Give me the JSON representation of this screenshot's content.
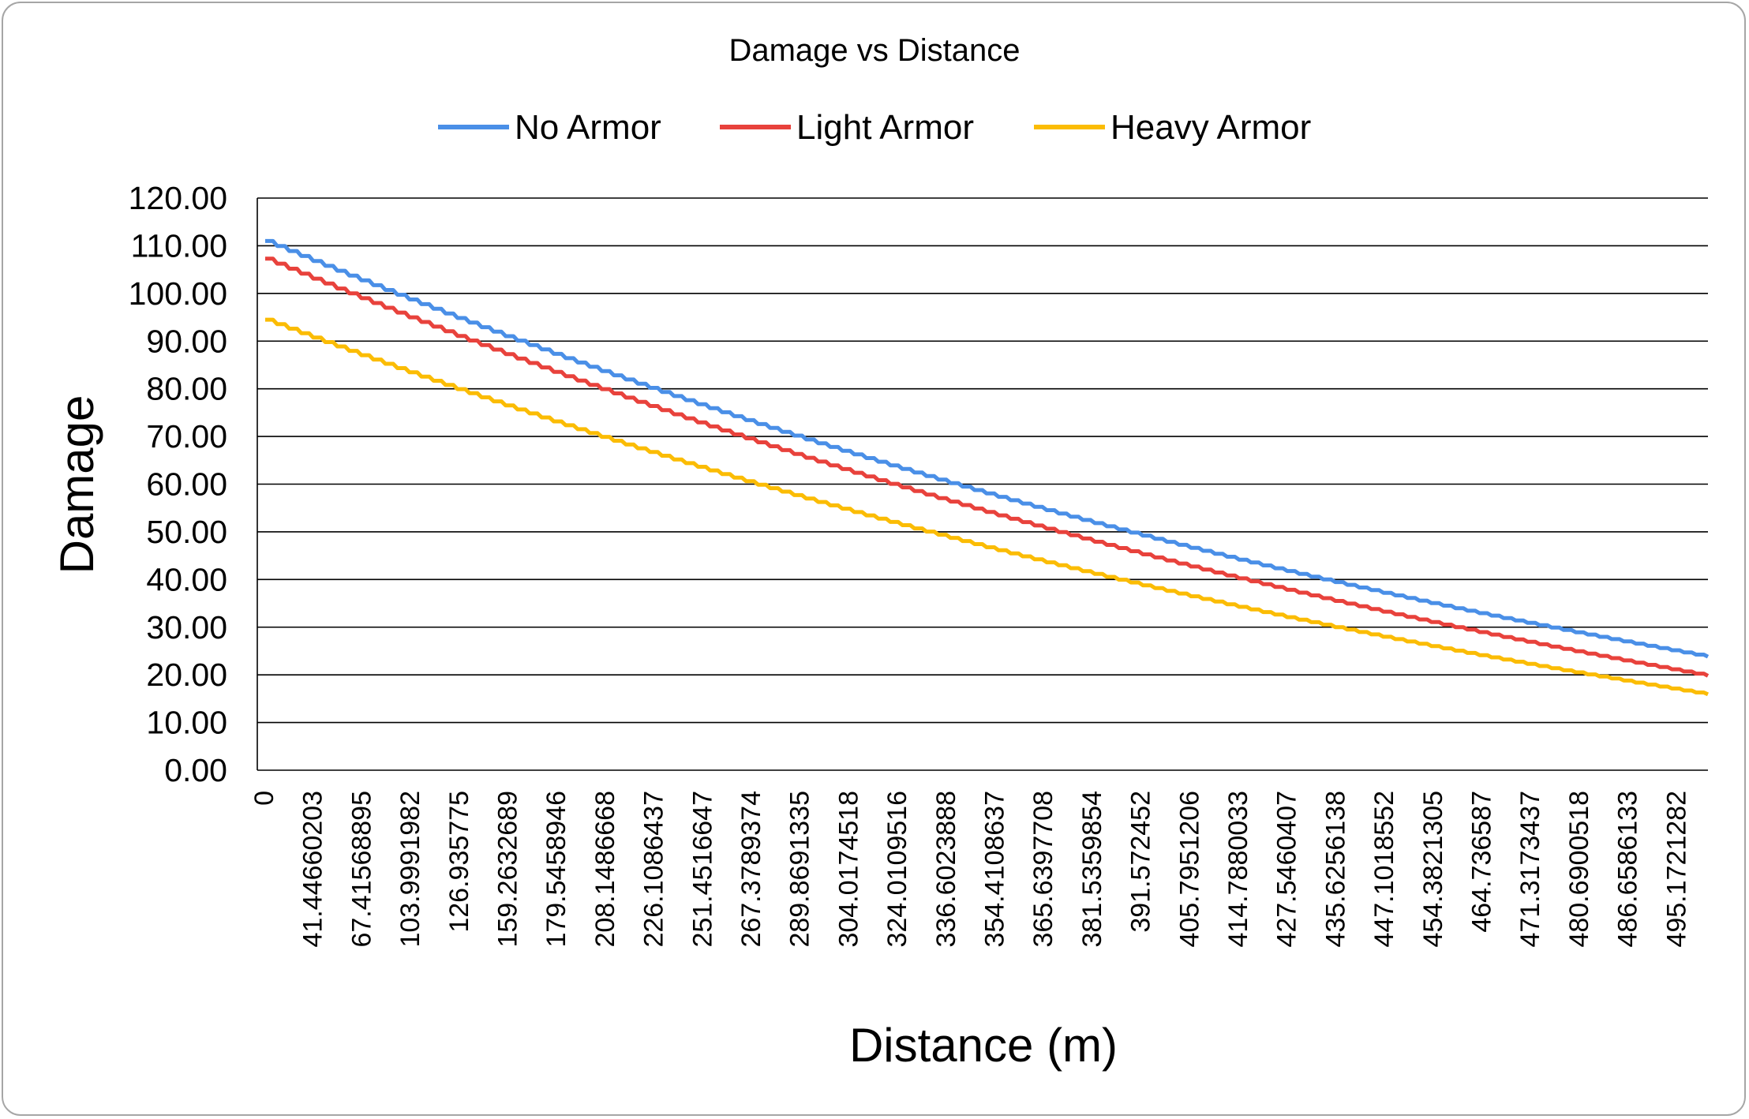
{
  "chart_data": {
    "type": "line",
    "title": "Damage vs Distance",
    "xlabel": "Distance (m)",
    "ylabel": "Damage",
    "ylim": [
      0,
      120
    ],
    "xlim": [
      0,
      500
    ],
    "y_ticks": [
      "0.00",
      "10.00",
      "20.00",
      "30.00",
      "40.00",
      "50.00",
      "60.00",
      "70.00",
      "80.00",
      "90.00",
      "100.00",
      "110.00",
      "120.00"
    ],
    "x_tick_labels": [
      "0",
      "41.44660203",
      "67.41568895",
      "103.9991982",
      "126.935775",
      "159.2632689",
      "179.5458946",
      "208.1486668",
      "226.1086437",
      "251.4516647",
      "267.3789374",
      "289.8691335",
      "304.0174518",
      "324.0109516",
      "336.6023888",
      "354.4108637",
      "365.6397708",
      "381.5359854",
      "391.572452",
      "405.7951206",
      "414.7880033",
      "427.5460407",
      "435.6256138",
      "447.1018552",
      "454.3821305",
      "464.736587",
      "471.3173437",
      "480.6900518",
      "486.6586133",
      "495.1721282"
    ],
    "grid": true,
    "legend_position": "top",
    "series": [
      {
        "name": "No Armor",
        "color": "#4a8fe7",
        "y_start": 111.0,
        "y_end": 23.8
      },
      {
        "name": "Light Armor",
        "color": "#e8423c",
        "y_start": 107.3,
        "y_end": 19.8
      },
      {
        "name": "Heavy Armor",
        "color": "#fbbc04",
        "y_start": 94.5,
        "y_end": 15.9
      }
    ]
  }
}
